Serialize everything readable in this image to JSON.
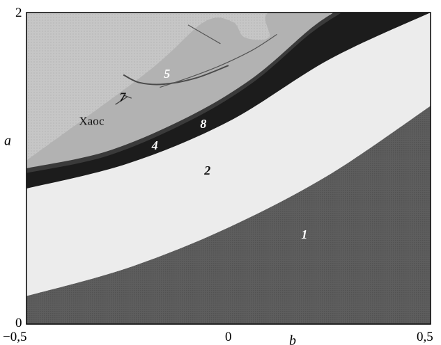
{
  "chart_data": {
    "type": "heatmap",
    "title": "",
    "xlabel": "b",
    "ylabel": "a",
    "xlim": [
      -0.5,
      0.5
    ],
    "ylim": [
      0,
      2
    ],
    "x_ticks": [
      "−0,5",
      "0",
      "0,5"
    ],
    "y_ticks": [
      "0",
      "2"
    ],
    "regions": [
      {
        "label": "1",
        "color": "#5e5e5e",
        "description_point": [
          0.18,
          0.55
        ]
      },
      {
        "label": "2",
        "color": "#ececec",
        "description_point": [
          -0.06,
          0.96
        ]
      },
      {
        "label": "4",
        "color": "#1c1c1c",
        "description_point": [
          -0.19,
          1.12
        ]
      },
      {
        "label": "Хаос",
        "color": "#c6c6c6",
        "description_point": [
          -0.37,
          1.28
        ]
      },
      {
        "label": "5",
        "color": "#9a9a9a",
        "description_point": [
          -0.16,
          1.58
        ]
      },
      {
        "label": "7",
        "color": "#8a8a8a",
        "description_point": [
          -0.27,
          1.43
        ]
      },
      {
        "label": "8",
        "color": "#3a3a3a",
        "description_point": [
          -0.07,
          1.26
        ]
      }
    ],
    "boundaries": {
      "region1_top": [
        [
          -0.5,
          0.18
        ],
        [
          -0.25,
          0.36
        ],
        [
          0.0,
          0.62
        ],
        [
          0.25,
          0.96
        ],
        [
          0.5,
          1.4
        ]
      ],
      "region2_top": [
        [
          -0.5,
          0.87
        ],
        [
          -0.25,
          1.03
        ],
        [
          0.0,
          1.3
        ],
        [
          0.25,
          1.7
        ],
        [
          0.5,
          2.0
        ]
      ],
      "region4_top": [
        [
          -0.5,
          0.97
        ],
        [
          -0.3,
          1.08
        ],
        [
          -0.1,
          1.3
        ],
        [
          0.06,
          1.55
        ],
        [
          0.2,
          1.86
        ],
        [
          0.28,
          2.0
        ]
      ],
      "region8_top": [
        [
          -0.5,
          1.0
        ],
        [
          -0.3,
          1.11
        ],
        [
          -0.1,
          1.33
        ],
        [
          0.06,
          1.58
        ],
        [
          0.2,
          1.89
        ],
        [
          0.26,
          2.0
        ]
      ]
    }
  }
}
